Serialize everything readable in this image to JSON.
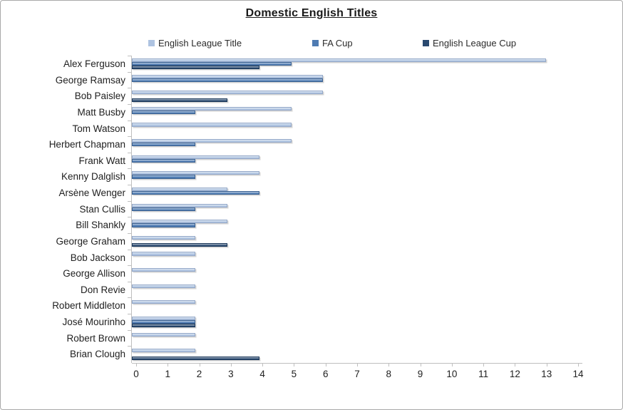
{
  "window": {
    "background_color": "#FFFFFF",
    "frame_border_color": "#A9A9A9"
  },
  "chart_data": {
    "type": "bar",
    "orientation": "horizontal",
    "title": "Domestic English Titles",
    "grid": false,
    "legend_position": "top",
    "categories": [
      "Alex Ferguson",
      "George Ramsay",
      "Bob Paisley",
      "Matt Busby",
      "Tom Watson",
      "Herbert Chapman",
      "Frank Watt",
      "Kenny Dalglish",
      "Arsène Wenger",
      "Stan Cullis",
      "Bill Shankly",
      "George Graham",
      "Bob Jackson",
      "George Allison",
      "Don Revie",
      "Robert Middleton",
      "José Mourinho",
      "Robert Brown",
      "Brian Clough"
    ],
    "series": [
      {
        "name": "English League Title",
        "color": "#AEC3E1",
        "values": [
          13,
          6,
          6,
          5,
          5,
          5,
          4,
          4,
          3,
          3,
          3,
          2,
          2,
          2,
          2,
          2,
          2,
          2,
          2
        ]
      },
      {
        "name": "FA Cup",
        "color": "#4E7BB2",
        "values": [
          5,
          6,
          0,
          2,
          0,
          2,
          2,
          2,
          4,
          2,
          2,
          0,
          0,
          0,
          0,
          0,
          2,
          0,
          0
        ]
      },
      {
        "name": "English League Cup",
        "color": "#29496F",
        "values": [
          4,
          0,
          3,
          0,
          0,
          0,
          0,
          0,
          0,
          0,
          0,
          3,
          0,
          0,
          0,
          0,
          2,
          0,
          4
        ]
      }
    ],
    "x_axis": {
      "min": 0,
      "max": 14,
      "tick_interval": 1,
      "tick_labels": [
        "0",
        "1",
        "2",
        "3",
        "4",
        "5",
        "6",
        "7",
        "8",
        "9",
        "10",
        "11",
        "12",
        "13",
        "14"
      ]
    }
  }
}
